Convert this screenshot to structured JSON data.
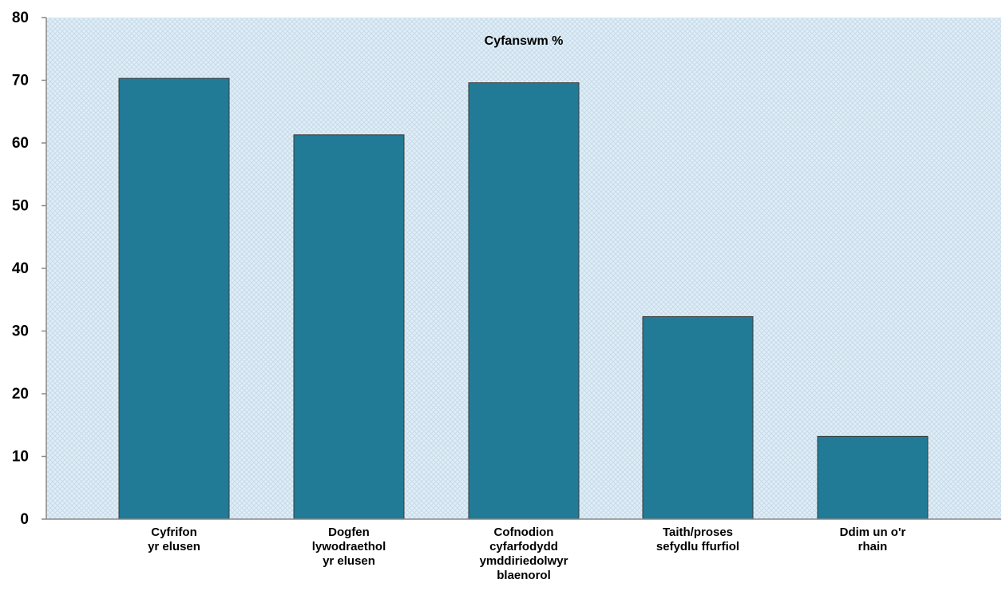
{
  "chart_data": {
    "type": "bar",
    "title": "Cyfanswm  %",
    "categories": [
      [
        "Cyfrifon",
        "yr elusen"
      ],
      [
        "Dogfen",
        "lywodraethol",
        "yr elusen"
      ],
      [
        "Cofnodion",
        "cyfarfodydd",
        "ymddiriedolwyr",
        "blaenorol"
      ],
      [
        "Taith/proses",
        "sefydlu ffurfiol"
      ],
      [
        "Ddim un o'r",
        "rhain"
      ]
    ],
    "values": [
      70.3,
      61.3,
      69.6,
      32.3,
      13.2
    ],
    "ylim": [
      0,
      80
    ],
    "yticks": [
      0,
      10,
      20,
      30,
      40,
      50,
      60,
      70,
      80
    ],
    "xlabel": "",
    "ylabel": "",
    "grid": false,
    "legend": "none",
    "colors": {
      "bar": "#217b96",
      "bar_edge": "#3a3a3a",
      "plot_background": "#dfeef8",
      "plot_pattern": "#c9dbe8",
      "axis": "#888888"
    }
  }
}
